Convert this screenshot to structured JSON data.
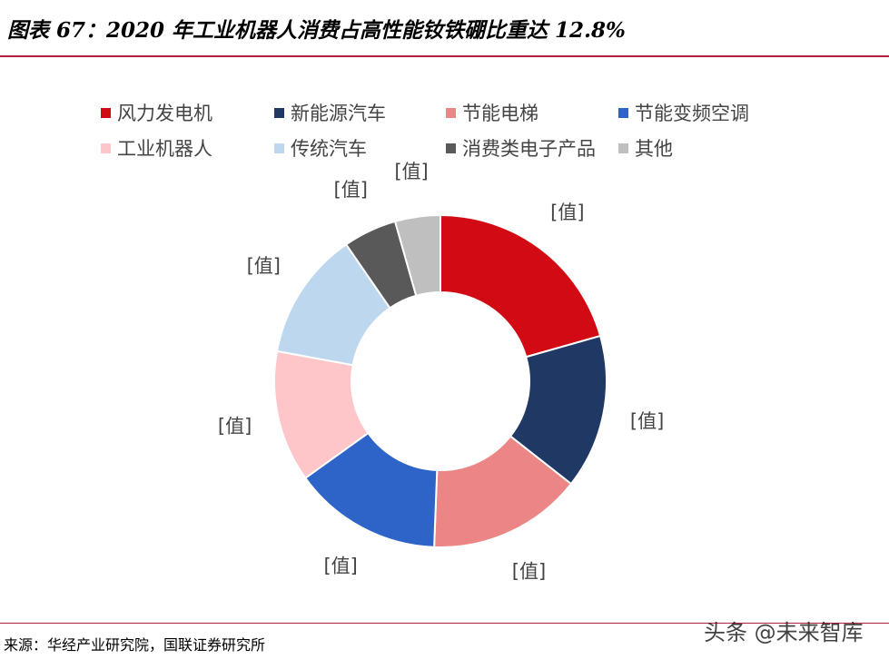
{
  "title": "图表 67：2020 年工业机器人消费占高性能钕铁硼比重达 12.8%",
  "source": "来源：华经产业研究院，国联证券研究所",
  "watermark": "头条 @未来智库",
  "chart_data": {
    "type": "pie",
    "variant": "donut",
    "title": "",
    "legend_position": "top",
    "series": [
      {
        "name": "风力发电机",
        "value": 20.6,
        "label": "[值]",
        "color": "#d20a13"
      },
      {
        "name": "新能源汽车",
        "value": 15.0,
        "label": "[值]",
        "color": "#1f3864"
      },
      {
        "name": "节能电梯",
        "value": 15.0,
        "label": "[值]",
        "color": "#ec8585"
      },
      {
        "name": "节能变频空调",
        "value": 14.5,
        "label": "[值]",
        "color": "#2e63c8"
      },
      {
        "name": "工业机器人",
        "value": 12.8,
        "label": "[值]",
        "color": "#fec6c9"
      },
      {
        "name": "传统汽车",
        "value": 12.5,
        "label": "[值]",
        "color": "#bdd7ee"
      },
      {
        "name": "消费类电子产品",
        "value": 5.2,
        "label": "[值]",
        "color": "#595959"
      },
      {
        "name": "其他",
        "value": 4.4,
        "label": "[值]",
        "color": "#bfbfbf"
      }
    ]
  }
}
